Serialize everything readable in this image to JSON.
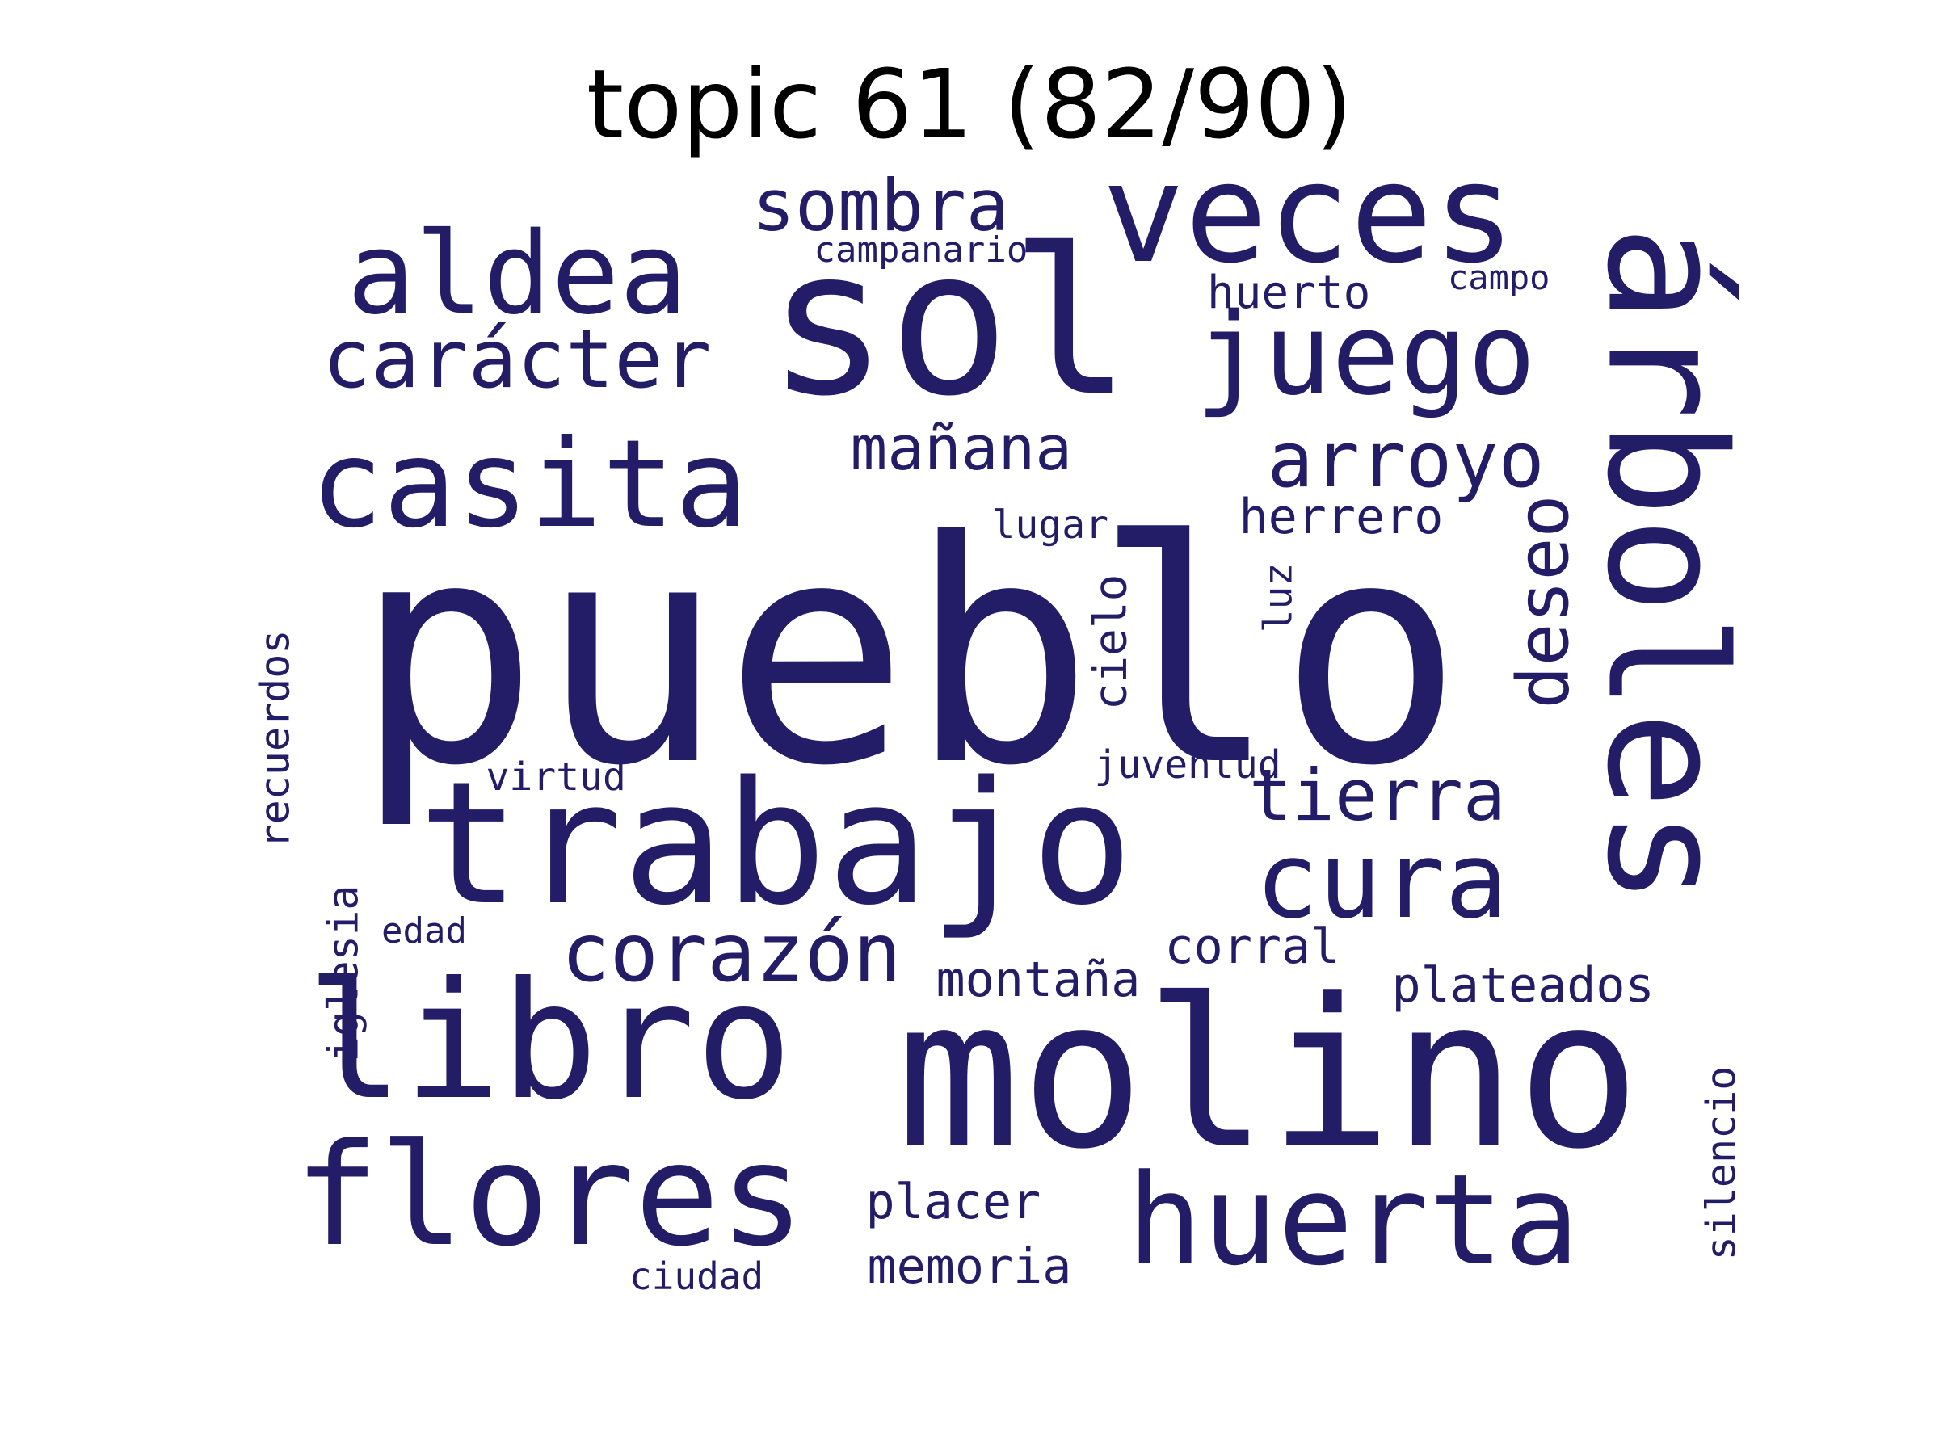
{
  "title": "topic 61 (82/90)",
  "color": "#231d68",
  "words": [
    {
      "text": "pueblo",
      "rot": 0
    },
    {
      "text": "molino",
      "rot": 0
    },
    {
      "text": "sol",
      "rot": 0
    },
    {
      "text": "trabajo",
      "rot": 0
    },
    {
      "text": "árboles",
      "rot": 90
    },
    {
      "text": "libro",
      "rot": 0
    },
    {
      "text": "flores",
      "rot": 0
    },
    {
      "text": "veces",
      "rot": 0
    },
    {
      "text": "huerta",
      "rot": 0
    },
    {
      "text": "casita",
      "rot": 0
    },
    {
      "text": "aldea",
      "rot": 0
    },
    {
      "text": "juego",
      "rot": 0
    },
    {
      "text": "cura",
      "rot": 0
    },
    {
      "text": "carácter",
      "rot": 0
    },
    {
      "text": "corazón",
      "rot": 0
    },
    {
      "text": "arroyo",
      "rot": 0
    },
    {
      "text": "sombra",
      "rot": 0
    },
    {
      "text": "tierra",
      "rot": 0
    },
    {
      "text": "deseo",
      "rot": -90
    },
    {
      "text": "mañana",
      "rot": 0
    },
    {
      "text": "herrero",
      "rot": 0
    },
    {
      "text": "corral",
      "rot": 0
    },
    {
      "text": "montaña",
      "rot": 0
    },
    {
      "text": "plateados",
      "rot": 0
    },
    {
      "text": "placer",
      "rot": 0
    },
    {
      "text": "memoria",
      "rot": 0
    },
    {
      "text": "huerto",
      "rot": 0
    },
    {
      "text": "cielo",
      "rot": -90
    },
    {
      "text": "recuerdos",
      "rot": -90
    },
    {
      "text": "iglesia",
      "rot": -90
    },
    {
      "text": "silencio",
      "rot": -90
    },
    {
      "text": "campanario",
      "rot": 0
    },
    {
      "text": "lugar",
      "rot": 0
    },
    {
      "text": "juventud",
      "rot": 0
    },
    {
      "text": "campo",
      "rot": 0
    },
    {
      "text": "virtud",
      "rot": 0
    },
    {
      "text": "luz",
      "rot": -90
    },
    {
      "text": "ciudad",
      "rot": 0
    },
    {
      "text": "edad",
      "rot": 0
    }
  ]
}
